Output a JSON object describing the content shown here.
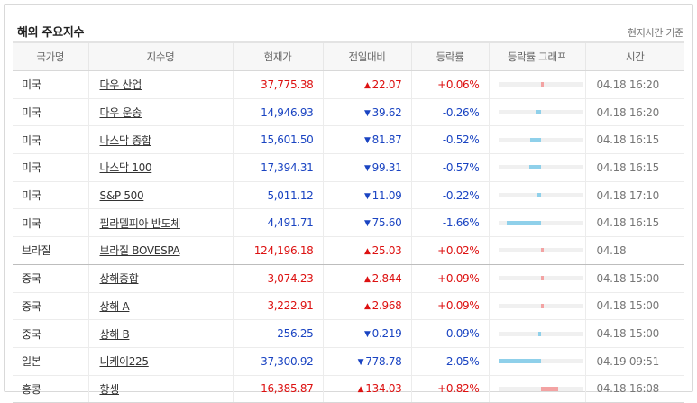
{
  "header": {
    "title": "해외 주요지수",
    "note": "현지시간 기준"
  },
  "columns": [
    "국가명",
    "지수명",
    "현재가",
    "전일대비",
    "등락률",
    "등락률 그래프",
    "시간"
  ],
  "rows": [
    {
      "country": "미국",
      "name": "다우 산업",
      "price": "37,775.38",
      "direction": "up",
      "arrow": "▲",
      "change": "22.07",
      "rate": "+0.06%",
      "rate_value": 0.06,
      "time": "04.18 16:20"
    },
    {
      "country": "미국",
      "name": "다우 운송",
      "price": "14,946.93",
      "direction": "down",
      "arrow": "▼",
      "change": "39.62",
      "rate": "-0.26%",
      "rate_value": -0.26,
      "time": "04.18 16:20"
    },
    {
      "country": "미국",
      "name": "나스닥 종합",
      "price": "15,601.50",
      "direction": "down",
      "arrow": "▼",
      "change": "81.87",
      "rate": "-0.52%",
      "rate_value": -0.52,
      "time": "04.18 16:15"
    },
    {
      "country": "미국",
      "name": "나스닥 100",
      "price": "17,394.31",
      "direction": "down",
      "arrow": "▼",
      "change": "99.31",
      "rate": "-0.57%",
      "rate_value": -0.57,
      "time": "04.18 16:15"
    },
    {
      "country": "미국",
      "name": "S&P 500",
      "price": "5,011.12",
      "direction": "down",
      "arrow": "▼",
      "change": "11.09",
      "rate": "-0.22%",
      "rate_value": -0.22,
      "time": "04.18 17:10"
    },
    {
      "country": "미국",
      "name": "필라델피아 반도체",
      "price": "4,491.71",
      "direction": "down",
      "arrow": "▼",
      "change": "75.60",
      "rate": "-1.66%",
      "rate_value": -1.66,
      "time": "04.18 16:15"
    },
    {
      "country": "브라질",
      "name": "브라질 BOVESPA",
      "price": "124,196.18",
      "direction": "up",
      "arrow": "▲",
      "change": "25.03",
      "rate": "+0.02%",
      "rate_value": 0.02,
      "time": "04.18"
    },
    {
      "country": "중국",
      "name": "상해종합",
      "price": "3,074.23",
      "direction": "up",
      "arrow": "▲",
      "change": "2.844",
      "rate": "+0.09%",
      "rate_value": 0.09,
      "time": "04.18 15:00"
    },
    {
      "country": "중국",
      "name": "상해 A",
      "price": "3,222.91",
      "direction": "up",
      "arrow": "▲",
      "change": "2.968",
      "rate": "+0.09%",
      "rate_value": 0.09,
      "time": "04.18 15:00"
    },
    {
      "country": "중국",
      "name": "상해 B",
      "price": "256.25",
      "direction": "down",
      "arrow": "▼",
      "change": "0.219",
      "rate": "-0.09%",
      "rate_value": -0.09,
      "time": "04.18 15:00"
    },
    {
      "country": "일본",
      "name": "니케이225",
      "price": "37,300.92",
      "direction": "down",
      "arrow": "▼",
      "change": "778.78",
      "rate": "-2.05%",
      "rate_value": -2.05,
      "time": "04.19 09:51"
    },
    {
      "country": "홍콩",
      "name": "항셍",
      "price": "16,385.87",
      "direction": "up",
      "arrow": "▲",
      "change": "134.03",
      "rate": "+0.82%",
      "rate_value": 0.82,
      "time": "04.18 16:08"
    }
  ],
  "colors": {
    "up": "#dd1111",
    "down": "#1a44c2",
    "bar_up": "#f3a3a3",
    "bar_down": "#8fd0ea"
  }
}
